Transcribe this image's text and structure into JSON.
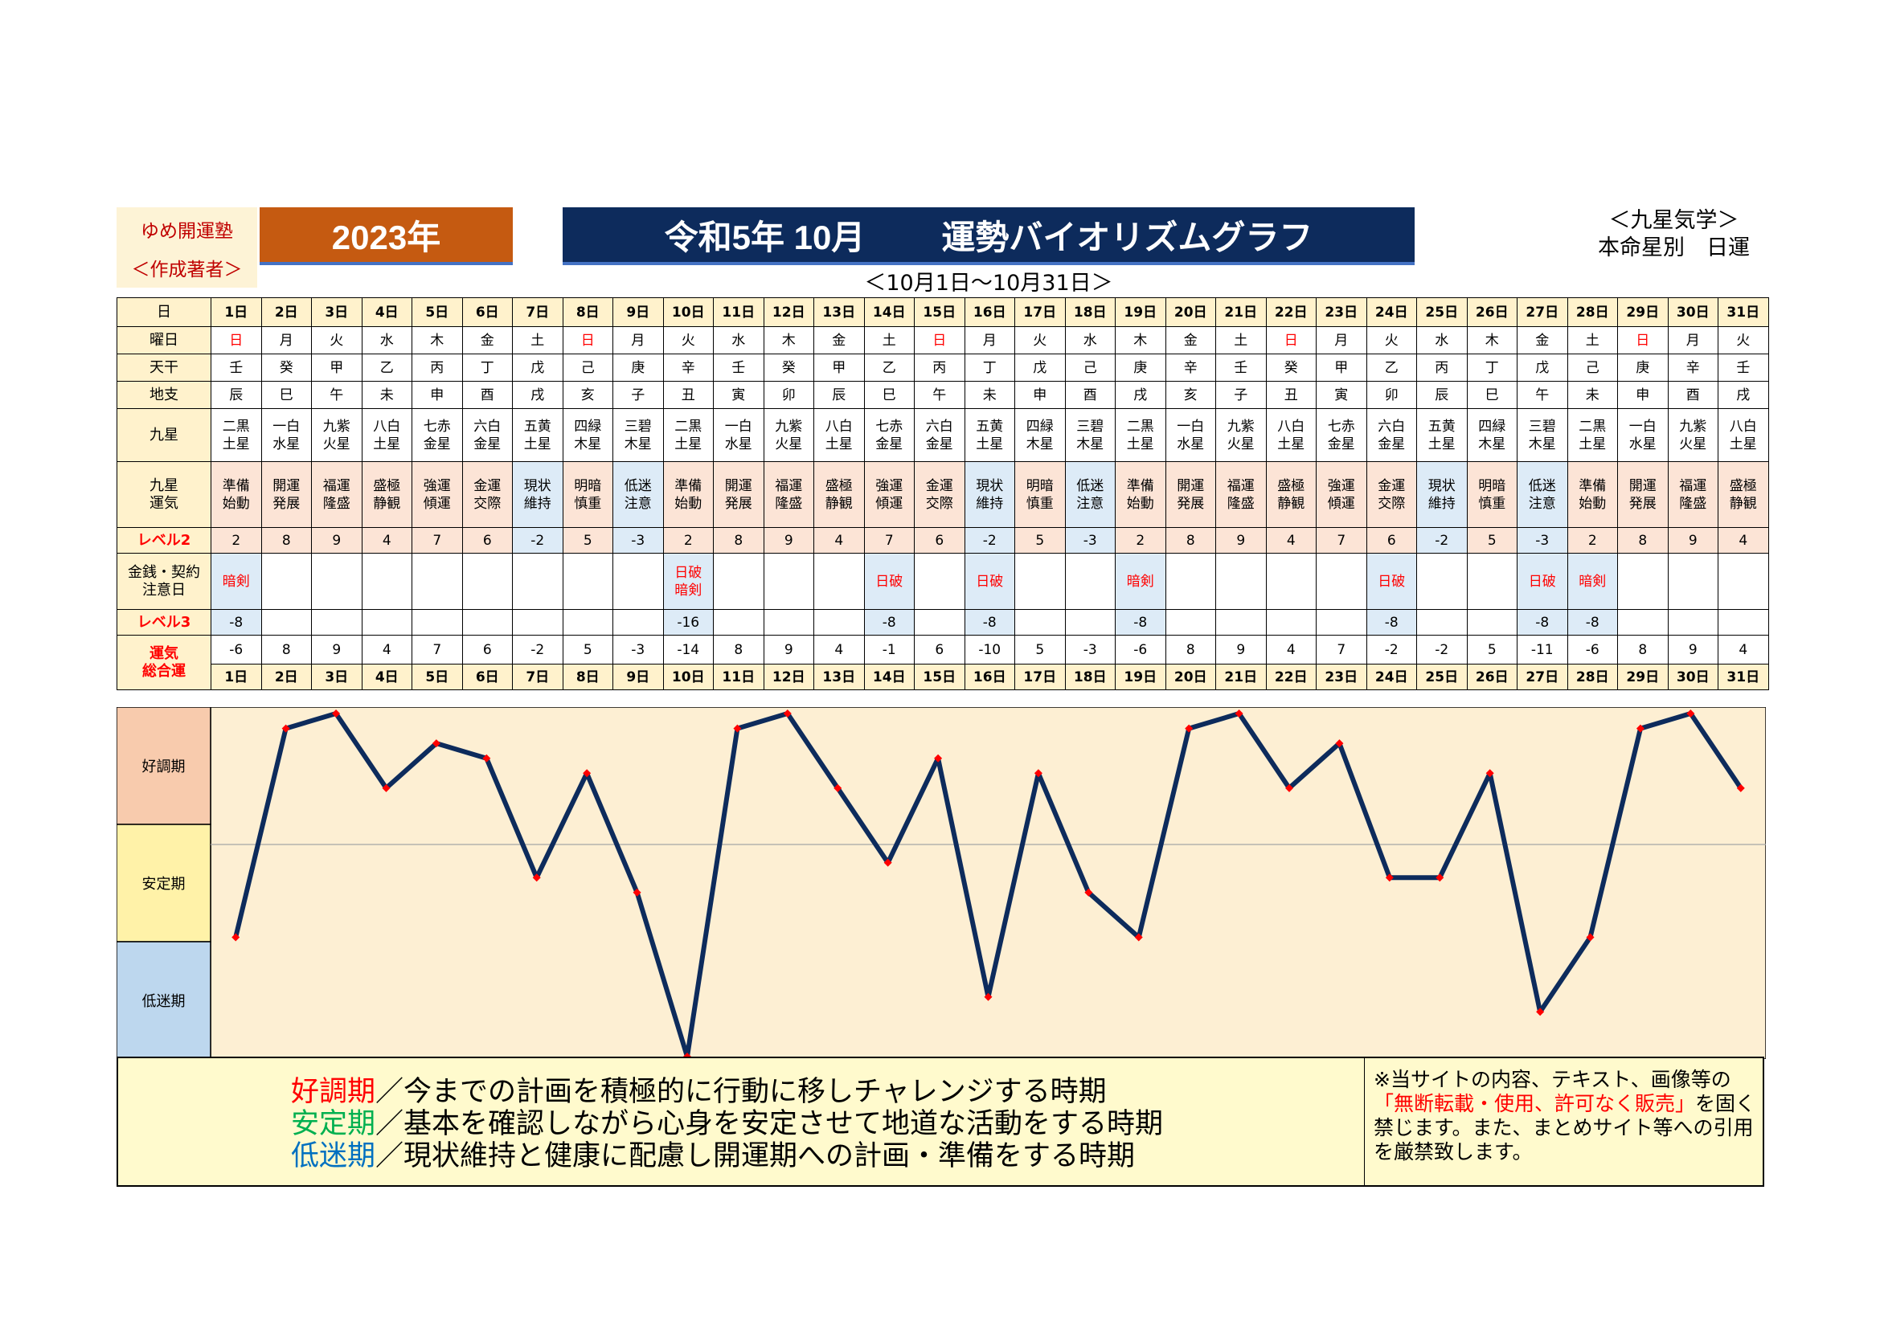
{
  "header": {
    "brand_line1": "ゆめ開運塾",
    "brand_line2": "＜作成著者＞",
    "year": "2023年",
    "title_left": "令和5年 10月",
    "title_right": "運勢バイオリズムグラフ",
    "date_range": "＜10月1日～10月31日＞",
    "source_line1": "＜九星気学＞",
    "source_line2": "本命星別　日運"
  },
  "row_labels": {
    "day": "日",
    "weekday": "曜日",
    "heavenly_stem": "天干",
    "earthly_branch": "地支",
    "nine_star": "九星",
    "nine_star_fortune_1": "九星",
    "nine_star_fortune_2": "運気",
    "level2": "レベル2",
    "money_1": "金銭・契約",
    "money_2": "注意日",
    "level3": "レベル3",
    "total_1": "運気",
    "total_2": "総合運"
  },
  "days": [
    {
      "day": "1日",
      "weekday": "日",
      "stem": "壬",
      "branch": "辰",
      "star1": "二黒",
      "star2": "土星",
      "fortune1": "準備",
      "fortune2": "始動",
      "level2": "2",
      "caution1": "暗剣",
      "caution2": "",
      "level3": "-8",
      "total": "-6"
    },
    {
      "day": "2日",
      "weekday": "月",
      "stem": "癸",
      "branch": "巳",
      "star1": "一白",
      "star2": "水星",
      "fortune1": "開運",
      "fortune2": "発展",
      "level2": "8",
      "caution1": "",
      "caution2": "",
      "level3": "",
      "total": "8"
    },
    {
      "day": "3日",
      "weekday": "火",
      "stem": "甲",
      "branch": "午",
      "star1": "九紫",
      "star2": "火星",
      "fortune1": "福運",
      "fortune2": "隆盛",
      "level2": "9",
      "caution1": "",
      "caution2": "",
      "level3": "",
      "total": "9"
    },
    {
      "day": "4日",
      "weekday": "水",
      "stem": "乙",
      "branch": "未",
      "star1": "八白",
      "star2": "土星",
      "fortune1": "盛極",
      "fortune2": "静観",
      "level2": "4",
      "caution1": "",
      "caution2": "",
      "level3": "",
      "total": "4"
    },
    {
      "day": "5日",
      "weekday": "木",
      "stem": "丙",
      "branch": "申",
      "star1": "七赤",
      "star2": "金星",
      "fortune1": "強運",
      "fortune2": "傾運",
      "level2": "7",
      "caution1": "",
      "caution2": "",
      "level3": "",
      "total": "7"
    },
    {
      "day": "6日",
      "weekday": "金",
      "stem": "丁",
      "branch": "酉",
      "star1": "六白",
      "star2": "金星",
      "fortune1": "金運",
      "fortune2": "交際",
      "level2": "6",
      "caution1": "",
      "caution2": "",
      "level3": "",
      "total": "6"
    },
    {
      "day": "7日",
      "weekday": "土",
      "stem": "戊",
      "branch": "戌",
      "star1": "五黄",
      "star2": "土星",
      "fortune1": "現状",
      "fortune2": "維持",
      "level2": "-2",
      "caution1": "",
      "caution2": "",
      "level3": "",
      "total": "-2"
    },
    {
      "day": "8日",
      "weekday": "日",
      "stem": "己",
      "branch": "亥",
      "star1": "四緑",
      "star2": "木星",
      "fortune1": "明暗",
      "fortune2": "慎重",
      "level2": "5",
      "caution1": "",
      "caution2": "",
      "level3": "",
      "total": "5"
    },
    {
      "day": "9日",
      "weekday": "月",
      "stem": "庚",
      "branch": "子",
      "star1": "三碧",
      "star2": "木星",
      "fortune1": "低迷",
      "fortune2": "注意",
      "level2": "-3",
      "caution1": "",
      "caution2": "",
      "level3": "",
      "total": "-3"
    },
    {
      "day": "10日",
      "weekday": "火",
      "stem": "辛",
      "branch": "丑",
      "star1": "二黒",
      "star2": "土星",
      "fortune1": "準備",
      "fortune2": "始動",
      "level2": "2",
      "caution1": "日破",
      "caution2": "暗剣",
      "level3": "-16",
      "total": "-14"
    },
    {
      "day": "11日",
      "weekday": "水",
      "stem": "壬",
      "branch": "寅",
      "star1": "一白",
      "star2": "水星",
      "fortune1": "開運",
      "fortune2": "発展",
      "level2": "8",
      "caution1": "",
      "caution2": "",
      "level3": "",
      "total": "8"
    },
    {
      "day": "12日",
      "weekday": "木",
      "stem": "癸",
      "branch": "卯",
      "star1": "九紫",
      "star2": "火星",
      "fortune1": "福運",
      "fortune2": "隆盛",
      "level2": "9",
      "caution1": "",
      "caution2": "",
      "level3": "",
      "total": "9"
    },
    {
      "day": "13日",
      "weekday": "金",
      "stem": "甲",
      "branch": "辰",
      "star1": "八白",
      "star2": "土星",
      "fortune1": "盛極",
      "fortune2": "静観",
      "level2": "4",
      "caution1": "",
      "caution2": "",
      "level3": "",
      "total": "4"
    },
    {
      "day": "14日",
      "weekday": "土",
      "stem": "乙",
      "branch": "巳",
      "star1": "七赤",
      "star2": "金星",
      "fortune1": "強運",
      "fortune2": "傾運",
      "level2": "7",
      "caution1": "日破",
      "caution2": "",
      "level3": "-8",
      "total": "-1"
    },
    {
      "day": "15日",
      "weekday": "日",
      "stem": "丙",
      "branch": "午",
      "star1": "六白",
      "star2": "金星",
      "fortune1": "金運",
      "fortune2": "交際",
      "level2": "6",
      "caution1": "",
      "caution2": "",
      "level3": "",
      "total": "6"
    },
    {
      "day": "16日",
      "weekday": "月",
      "stem": "丁",
      "branch": "未",
      "star1": "五黄",
      "star2": "土星",
      "fortune1": "現状",
      "fortune2": "維持",
      "level2": "-2",
      "caution1": "日破",
      "caution2": "",
      "level3": "-8",
      "total": "-10"
    },
    {
      "day": "17日",
      "weekday": "火",
      "stem": "戊",
      "branch": "申",
      "star1": "四緑",
      "star2": "木星",
      "fortune1": "明暗",
      "fortune2": "慎重",
      "level2": "5",
      "caution1": "",
      "caution2": "",
      "level3": "",
      "total": "5"
    },
    {
      "day": "18日",
      "weekday": "水",
      "stem": "己",
      "branch": "酉",
      "star1": "三碧",
      "star2": "木星",
      "fortune1": "低迷",
      "fortune2": "注意",
      "level2": "-3",
      "caution1": "",
      "caution2": "",
      "level3": "",
      "total": "-3"
    },
    {
      "day": "19日",
      "weekday": "木",
      "stem": "庚",
      "branch": "戌",
      "star1": "二黒",
      "star2": "土星",
      "fortune1": "準備",
      "fortune2": "始動",
      "level2": "2",
      "caution1": "暗剣",
      "caution2": "",
      "level3": "-8",
      "total": "-6"
    },
    {
      "day": "20日",
      "weekday": "金",
      "stem": "辛",
      "branch": "亥",
      "star1": "一白",
      "star2": "水星",
      "fortune1": "開運",
      "fortune2": "発展",
      "level2": "8",
      "caution1": "",
      "caution2": "",
      "level3": "",
      "total": "8"
    },
    {
      "day": "21日",
      "weekday": "土",
      "stem": "壬",
      "branch": "子",
      "star1": "九紫",
      "star2": "火星",
      "fortune1": "福運",
      "fortune2": "隆盛",
      "level2": "9",
      "caution1": "",
      "caution2": "",
      "level3": "",
      "total": "9"
    },
    {
      "day": "22日",
      "weekday": "日",
      "stem": "癸",
      "branch": "丑",
      "star1": "八白",
      "star2": "土星",
      "fortune1": "盛極",
      "fortune2": "静観",
      "level2": "4",
      "caution1": "",
      "caution2": "",
      "level3": "",
      "total": "4"
    },
    {
      "day": "23日",
      "weekday": "月",
      "stem": "甲",
      "branch": "寅",
      "star1": "七赤",
      "star2": "金星",
      "fortune1": "強運",
      "fortune2": "傾運",
      "level2": "7",
      "caution1": "",
      "caution2": "",
      "level3": "",
      "total": "7"
    },
    {
      "day": "24日",
      "weekday": "火",
      "stem": "乙",
      "branch": "卯",
      "star1": "六白",
      "star2": "金星",
      "fortune1": "金運",
      "fortune2": "交際",
      "level2": "6",
      "caution1": "日破",
      "caution2": "",
      "level3": "-8",
      "total": "-2"
    },
    {
      "day": "25日",
      "weekday": "水",
      "stem": "丙",
      "branch": "辰",
      "star1": "五黄",
      "star2": "土星",
      "fortune1": "現状",
      "fortune2": "維持",
      "level2": "-2",
      "caution1": "",
      "caution2": "",
      "level3": "",
      "total": "-2"
    },
    {
      "day": "26日",
      "weekday": "木",
      "stem": "丁",
      "branch": "巳",
      "star1": "四緑",
      "star2": "木星",
      "fortune1": "明暗",
      "fortune2": "慎重",
      "level2": "5",
      "caution1": "",
      "caution2": "",
      "level3": "",
      "total": "5"
    },
    {
      "day": "27日",
      "weekday": "金",
      "stem": "戊",
      "branch": "午",
      "star1": "三碧",
      "star2": "木星",
      "fortune1": "低迷",
      "fortune2": "注意",
      "level2": "-3",
      "caution1": "日破",
      "caution2": "",
      "level3": "-8",
      "total": "-11"
    },
    {
      "day": "28日",
      "weekday": "土",
      "stem": "己",
      "branch": "未",
      "star1": "二黒",
      "star2": "土星",
      "fortune1": "準備",
      "fortune2": "始動",
      "level2": "2",
      "caution1": "暗剣",
      "caution2": "",
      "level3": "-8",
      "total": "-6"
    },
    {
      "day": "29日",
      "weekday": "日",
      "stem": "庚",
      "branch": "申",
      "star1": "一白",
      "star2": "水星",
      "fortune1": "開運",
      "fortune2": "発展",
      "level2": "8",
      "caution1": "",
      "caution2": "",
      "level3": "",
      "total": "8"
    },
    {
      "day": "30日",
      "weekday": "月",
      "stem": "辛",
      "branch": "酉",
      "star1": "九紫",
      "star2": "火星",
      "fortune1": "福運",
      "fortune2": "隆盛",
      "level2": "9",
      "caution1": "",
      "caution2": "",
      "level3": "",
      "total": "9"
    },
    {
      "day": "31日",
      "weekday": "火",
      "stem": "壬",
      "branch": "戌",
      "star1": "八白",
      "star2": "土星",
      "fortune1": "盛極",
      "fortune2": "静観",
      "level2": "4",
      "caution1": "",
      "caution2": "",
      "level3": "",
      "total": "4"
    }
  ],
  "chart_data": {
    "type": "line",
    "x": [
      "1日",
      "2日",
      "3日",
      "4日",
      "5日",
      "6日",
      "7日",
      "8日",
      "9日",
      "10日",
      "11日",
      "12日",
      "13日",
      "14日",
      "15日",
      "16日",
      "17日",
      "18日",
      "19日",
      "20日",
      "21日",
      "22日",
      "23日",
      "24日",
      "25日",
      "26日",
      "27日",
      "28日",
      "29日",
      "30日",
      "31日"
    ],
    "values": [
      -6,
      8,
      9,
      4,
      7,
      6,
      -2,
      5,
      -3,
      -14,
      8,
      9,
      4,
      -1,
      6,
      -10,
      5,
      -3,
      -6,
      8,
      9,
      4,
      7,
      -2,
      -2,
      5,
      -11,
      -6,
      8,
      9,
      4
    ],
    "ylim": [
      -14,
      9
    ],
    "zones": [
      "好調期",
      "安定期",
      "低迷期"
    ],
    "grid": false,
    "colors": {
      "line": "#0d2b5c",
      "marker": "#ff0000",
      "plot_bg": "#fdefd3",
      "zone_good": "#f8cbad",
      "zone_stable": "#fff2a8",
      "zone_low": "#bdd7ee"
    }
  },
  "legend": {
    "good_term": "好調期",
    "good_text": "／今までの計画を積極的に行動に移しチャレンジする時期",
    "stable_term": "安定期",
    "stable_text": "／基本を確認しながら心身を安定させて地道な活動をする時期",
    "low_term": "低迷期",
    "low_text": "／現状維持と健康に配慮し開運期への計画・準備をする時期",
    "notice_1": "※当サイトの内容、テキスト、画像等の",
    "notice_red": "「無断転載・使用、許可なく販売」",
    "notice_2": "を固く禁じます。また、まとめサイト等への引用を厳禁致します。"
  }
}
